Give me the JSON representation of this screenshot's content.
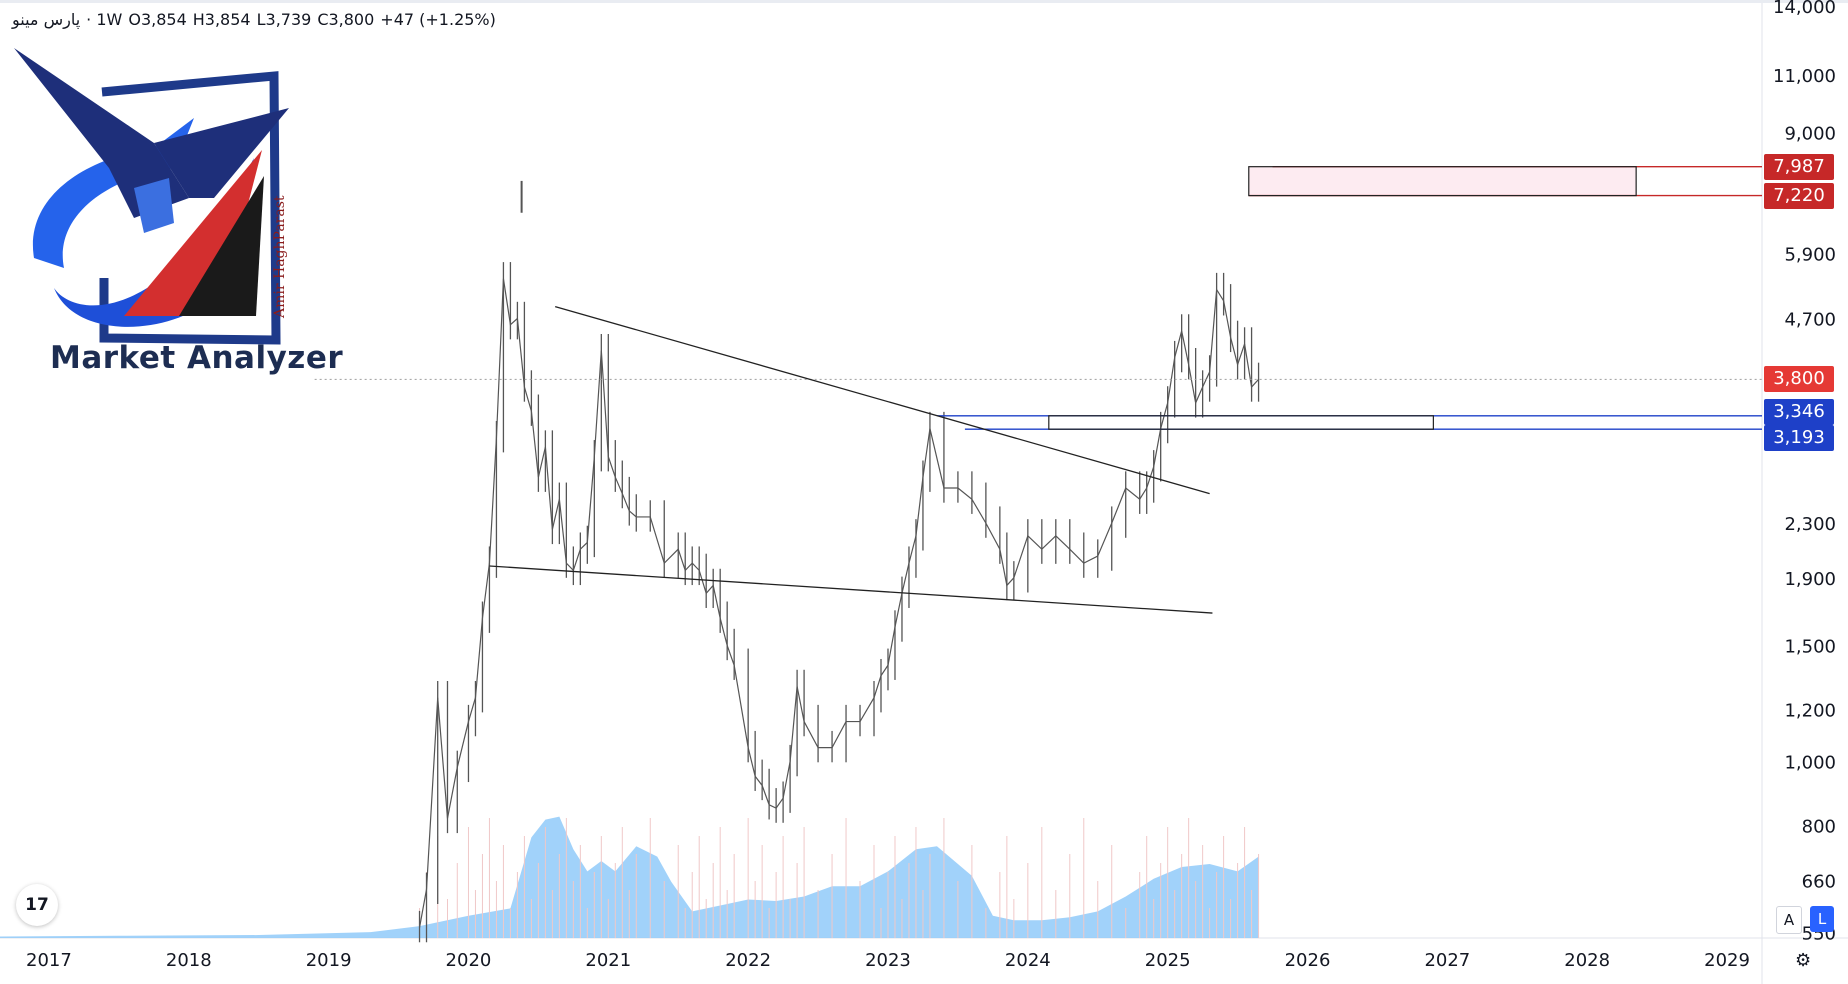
{
  "header": {
    "symbol": "پارس مینو",
    "interval": "· 1W",
    "open": "O3,854",
    "high": "H3,854",
    "low": "L3,739",
    "close": "C3,800",
    "change": "+47 (+1.25%)"
  },
  "branding": {
    "logo_text": "Amir HaghParast",
    "title": "Market Analyzer"
  },
  "toolbar": {
    "tv_logo": "17",
    "scale_auto": "A",
    "scale_log": "L",
    "settings_icon": "gear-icon"
  },
  "colors": {
    "candle": "#555555",
    "volume": "#90caf9",
    "volume_bar": "#f0c8c8",
    "resistance": "#c62828",
    "support": "#1e40c8",
    "current": "#e53935"
  },
  "price_labels": [
    {
      "text": "7,987",
      "kind": "resistance"
    },
    {
      "text": "7,220",
      "kind": "resistance"
    },
    {
      "text": "3,800",
      "kind": "current"
    },
    {
      "text": "3,346",
      "kind": "support"
    },
    {
      "text": "3,193",
      "kind": "support"
    }
  ],
  "chart_data": {
    "type": "line",
    "title": "",
    "xlabel": "",
    "ylabel": "",
    "log_scale": true,
    "ylim": [
      540,
      14000
    ],
    "xlim": [
      2016.65,
      2029.25
    ],
    "x_ticks": [
      "2017",
      "2018",
      "2019",
      "2020",
      "2021",
      "2022",
      "2023",
      "2024",
      "2025",
      "2026",
      "2027",
      "2028",
      "2029"
    ],
    "y_ticks": [
      "14,000",
      "11,000",
      "9,000",
      "5,900",
      "4,700",
      "2,300",
      "1,900",
      "1,500",
      "1,200",
      "1,000",
      "800",
      "660",
      "550"
    ],
    "series": [
      {
        "values_x": [
          2019.65,
          2019.7,
          2019.78,
          2019.85,
          2019.92,
          2020.0,
          2020.05,
          2020.1,
          2020.15,
          2020.2,
          2020.25,
          2020.3,
          2020.35,
          2020.4,
          2020.45,
          2020.5,
          2020.55,
          2020.6,
          2020.65,
          2020.7,
          2020.75,
          2020.8,
          2020.85,
          2020.9,
          2020.95,
          2021.0,
          2021.05,
          2021.1,
          2021.15,
          2021.2,
          2021.3,
          2021.4,
          2021.5,
          2021.55,
          2021.6,
          2021.65,
          2021.7,
          2021.75,
          2021.8,
          2021.85,
          2021.9,
          2022.0,
          2022.05,
          2022.1,
          2022.15,
          2022.2,
          2022.25,
          2022.3,
          2022.35,
          2022.4,
          2022.5,
          2022.6,
          2022.7,
          2022.8,
          2022.9,
          2022.95,
          2023.0,
          2023.05,
          2023.1,
          2023.15,
          2023.2,
          2023.25,
          2023.3,
          2023.4,
          2023.5,
          2023.6,
          2023.7,
          2023.8,
          2023.85,
          2023.9,
          2024.0,
          2024.1,
          2024.2,
          2024.3,
          2024.4,
          2024.5,
          2024.6,
          2024.7,
          2024.8,
          2024.85,
          2024.9,
          2024.95,
          2025.0,
          2025.05,
          2025.1,
          2025.15,
          2025.2,
          2025.25,
          2025.3,
          2025.35,
          2025.4,
          2025.45,
          2025.5,
          2025.55,
          2025.6,
          2025.65
        ],
        "values_y": [
          560,
          640,
          1250,
          820,
          980,
          1150,
          1250,
          1650,
          2000,
          3100,
          5400,
          4600,
          4700,
          3700,
          3400,
          2700,
          3000,
          2250,
          2500,
          2000,
          1950,
          2100,
          2150,
          2900,
          4200,
          2900,
          2700,
          2550,
          2400,
          2350,
          2350,
          2000,
          2100,
          1950,
          2000,
          1950,
          1800,
          1850,
          1650,
          1500,
          1400,
          1050,
          950,
          920,
          860,
          850,
          880,
          1000,
          1300,
          1150,
          1050,
          1050,
          1150,
          1150,
          1250,
          1350,
          1400,
          1600,
          1800,
          2000,
          2200,
          2700,
          3200,
          2600,
          2600,
          2500,
          2300,
          2100,
          1850,
          1900,
          2200,
          2100,
          2200,
          2100,
          2000,
          2050,
          2300,
          2600,
          2500,
          2600,
          2800,
          3200,
          3500,
          4100,
          4500,
          4000,
          3500,
          3700,
          3900,
          5200,
          5000,
          4400,
          4000,
          4300,
          3700,
          3800
        ],
        "name": ""
      }
    ],
    "volume_area": {
      "x": [
        2016.65,
        2017.5,
        2018.5,
        2019.3,
        2019.65,
        2020.0,
        2020.3,
        2020.45,
        2020.55,
        2020.65,
        2020.75,
        2020.85,
        2020.95,
        2021.05,
        2021.2,
        2021.35,
        2021.45,
        2021.6,
        2021.8,
        2022.0,
        2022.2,
        2022.4,
        2022.6,
        2022.8,
        2023.0,
        2023.2,
        2023.35,
        2023.5,
        2023.6,
        2023.75,
        2023.9,
        2024.1,
        2024.3,
        2024.5,
        2024.7,
        2024.9,
        2025.1,
        2025.3,
        2025.5,
        2025.65
      ],
      "rel": [
        0.01,
        0.015,
        0.02,
        0.04,
        0.08,
        0.15,
        0.2,
        0.68,
        0.8,
        0.82,
        0.6,
        0.45,
        0.52,
        0.45,
        0.62,
        0.55,
        0.38,
        0.18,
        0.22,
        0.26,
        0.25,
        0.28,
        0.35,
        0.35,
        0.45,
        0.6,
        0.62,
        0.5,
        0.42,
        0.15,
        0.12,
        0.12,
        0.14,
        0.18,
        0.28,
        0.4,
        0.48,
        0.5,
        0.45,
        0.55
      ]
    },
    "trendlines": [
      {
        "from": [
          2020.62,
          4900
        ],
        "to": [
          2025.3,
          2550
        ]
      },
      {
        "from": [
          2020.15,
          1980
        ],
        "to": [
          2025.32,
          1680
        ]
      }
    ],
    "zones": [
      {
        "x0": 2025.58,
        "x1": 2028.35,
        "y0": 7220,
        "y1": 7987,
        "kind": "resistance"
      },
      {
        "x0": 2024.15,
        "x1": 2026.9,
        "y0": 3193,
        "y1": 3346,
        "kind": "support"
      }
    ],
    "levels": [
      {
        "price": 7987,
        "x0": 2025.75,
        "kind": "resistance"
      },
      {
        "price": 7220,
        "x0": 2025.58,
        "kind": "resistance"
      },
      {
        "price": 3346,
        "x0": 2023.35,
        "kind": "support"
      },
      {
        "price": 3193,
        "x0": 2023.55,
        "kind": "support"
      },
      {
        "price": 3800,
        "x0": 2018.9,
        "kind": "current"
      }
    ],
    "spike": {
      "x": 2020.38,
      "y0": 6800,
      "y1": 7600
    }
  }
}
